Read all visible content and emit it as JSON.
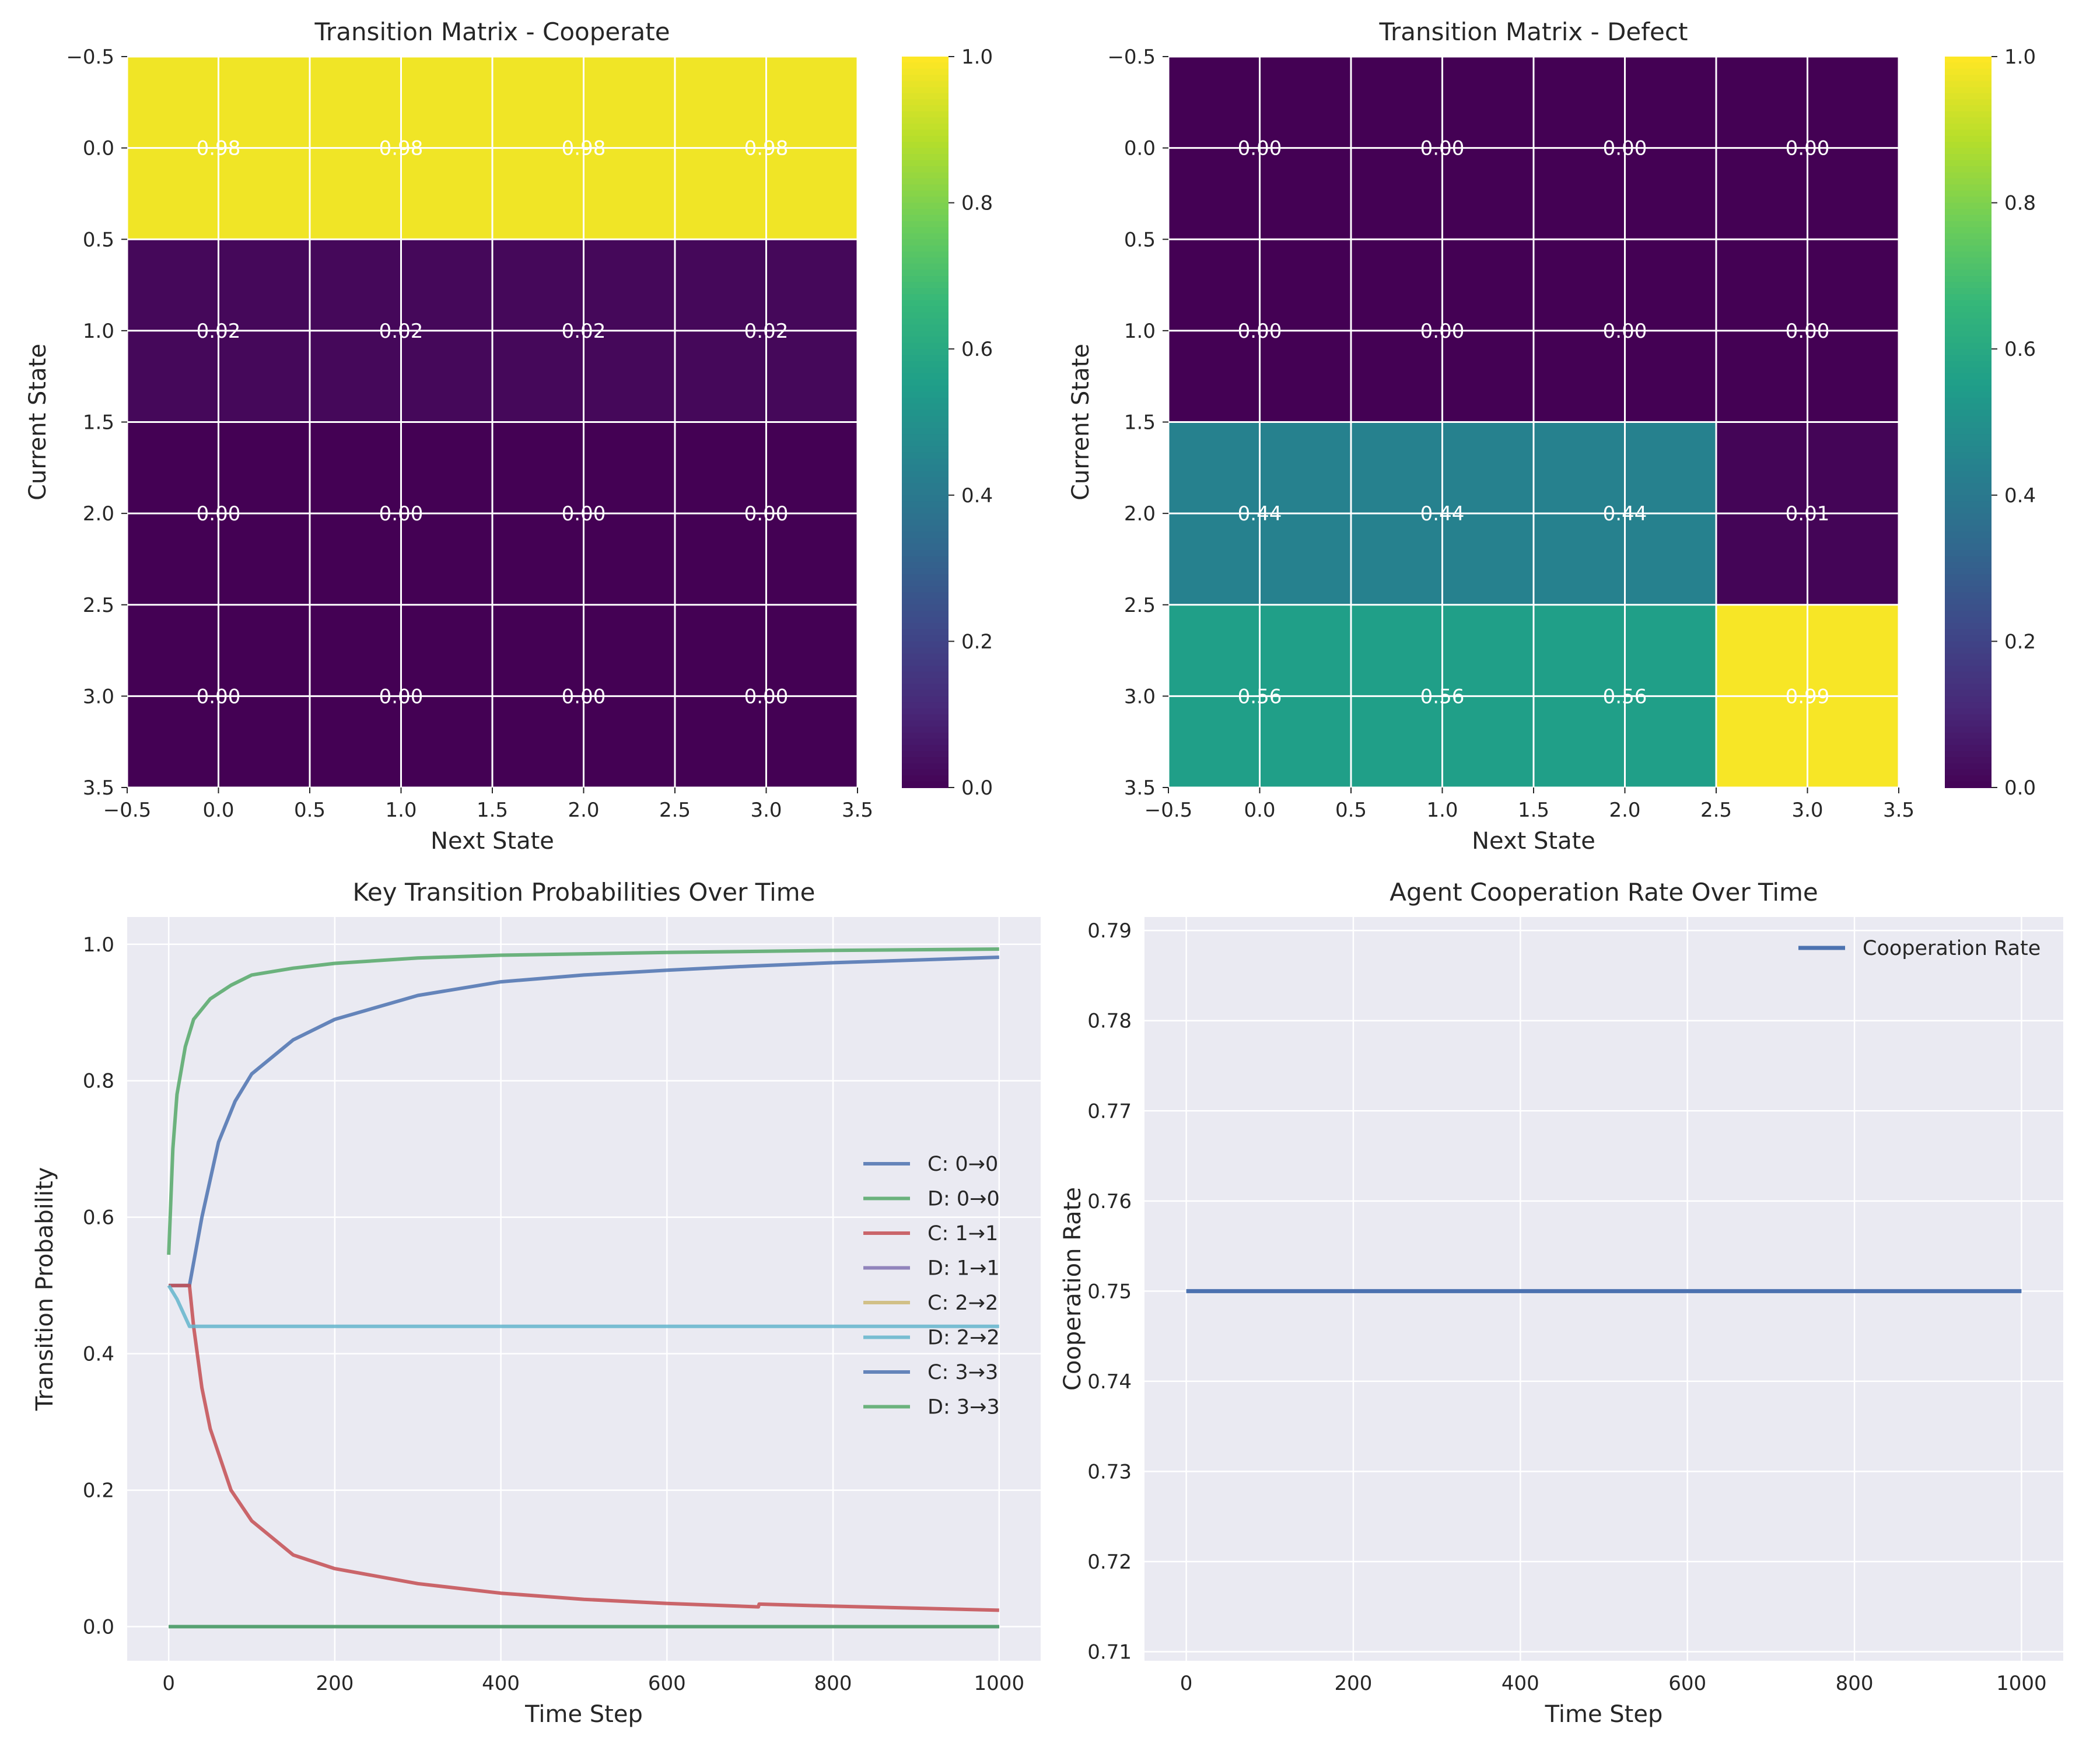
{
  "chart_data": [
    {
      "type": "heatmap",
      "title": "Transition Matrix - Cooperate",
      "xlabel": "Next State",
      "ylabel": "Current State",
      "xlim": [
        -0.5,
        3.5
      ],
      "ylim": [
        3.5,
        -0.5
      ],
      "xticks": [
        "−0.5",
        "0.0",
        "0.5",
        "1.0",
        "1.5",
        "2.0",
        "2.5",
        "3.0",
        "3.5"
      ],
      "yticks": [
        "−0.5",
        "0.0",
        "0.5",
        "1.0",
        "1.5",
        "2.0",
        "2.5",
        "3.0",
        "3.5"
      ],
      "values": [
        [
          0.98,
          0.98,
          0.98,
          0.98
        ],
        [
          0.02,
          0.02,
          0.02,
          0.02
        ],
        [
          0.0,
          0.0,
          0.0,
          0.0
        ],
        [
          0.0,
          0.0,
          0.0,
          0.0
        ]
      ],
      "labels": [
        [
          "0.98",
          "0.98",
          "0.98",
          "0.98"
        ],
        [
          "0.02",
          "0.02",
          "0.02",
          "0.02"
        ],
        [
          "0.00",
          "0.00",
          "0.00",
          "0.00"
        ],
        [
          "0.00",
          "0.00",
          "0.00",
          "0.00"
        ]
      ],
      "colormap": "viridis",
      "colorbar_range": [
        0.0,
        1.0
      ],
      "colorbar_ticks": [
        "0.0",
        "0.2",
        "0.4",
        "0.6",
        "0.8",
        "1.0"
      ],
      "grid": true
    },
    {
      "type": "heatmap",
      "title": "Transition Matrix - Defect",
      "xlabel": "Next State",
      "ylabel": "Current State",
      "xlim": [
        -0.5,
        3.5
      ],
      "ylim": [
        3.5,
        -0.5
      ],
      "xticks": [
        "−0.5",
        "0.0",
        "0.5",
        "1.0",
        "1.5",
        "2.0",
        "2.5",
        "3.0",
        "3.5"
      ],
      "yticks": [
        "−0.5",
        "0.0",
        "0.5",
        "1.0",
        "1.5",
        "2.0",
        "2.5",
        "3.0",
        "3.5"
      ],
      "values": [
        [
          0.0,
          0.0,
          0.0,
          0.0
        ],
        [
          0.0,
          0.0,
          0.0,
          0.0
        ],
        [
          0.44,
          0.44,
          0.44,
          0.01
        ],
        [
          0.56,
          0.56,
          0.56,
          0.99
        ]
      ],
      "labels": [
        [
          "0.00",
          "0.00",
          "0.00",
          "0.00"
        ],
        [
          "0.00",
          "0.00",
          "0.00",
          "0.00"
        ],
        [
          "0.44",
          "0.44",
          "0.44",
          "0.01"
        ],
        [
          "0.56",
          "0.56",
          "0.56",
          "0.99"
        ]
      ],
      "colormap": "viridis",
      "colorbar_range": [
        0.0,
        1.0
      ],
      "colorbar_ticks": [
        "0.0",
        "0.2",
        "0.4",
        "0.6",
        "0.8",
        "1.0"
      ],
      "grid": true
    },
    {
      "type": "line",
      "title": "Key Transition Probabilities Over Time",
      "xlabel": "Time Step",
      "ylabel": "Transition Probability",
      "xlim": [
        -50,
        1050
      ],
      "ylim": [
        -0.05,
        1.04
      ],
      "xticks": [
        0,
        200,
        400,
        600,
        800,
        1000
      ],
      "yticks": [
        0.0,
        0.2,
        0.4,
        0.6,
        0.8,
        1.0
      ],
      "grid": true,
      "legend_position": "center-right",
      "series": [
        {
          "name": "C: 0→0",
          "color": "#4c72b0",
          "x": [
            0,
            25,
            40,
            60,
            80,
            100,
            150,
            200,
            300,
            400,
            500,
            600,
            700,
            800,
            900,
            1000
          ],
          "y": [
            0.5,
            0.5,
            0.6,
            0.71,
            0.77,
            0.81,
            0.86,
            0.89,
            0.925,
            0.945,
            0.955,
            0.962,
            0.968,
            0.973,
            0.977,
            0.981
          ]
        },
        {
          "name": "D: 0→0",
          "color": "#55a868",
          "x": [
            0,
            5,
            10,
            20,
            30,
            50,
            75,
            100,
            150,
            200,
            300,
            400,
            600,
            800,
            1000
          ],
          "y": [
            0.545,
            0.7,
            0.78,
            0.85,
            0.89,
            0.92,
            0.94,
            0.955,
            0.965,
            0.972,
            0.98,
            0.984,
            0.988,
            0.991,
            0.993
          ]
        },
        {
          "name": "C: 1→1",
          "color": "#c44e52",
          "x": [
            0,
            25,
            30,
            40,
            50,
            75,
            100,
            150,
            200,
            300,
            400,
            500,
            600,
            710,
            711,
            800,
            900,
            1000
          ],
          "y": [
            0.5,
            0.5,
            0.44,
            0.35,
            0.29,
            0.2,
            0.155,
            0.105,
            0.085,
            0.063,
            0.049,
            0.04,
            0.034,
            0.029,
            0.033,
            0.03,
            0.027,
            0.024
          ]
        },
        {
          "name": "D: 1→1",
          "color": "#8172b3",
          "x": [
            0,
            1000
          ],
          "y": [
            0.0,
            0.0
          ]
        },
        {
          "name": "C: 2→2",
          "color": "#ccb974",
          "x": [
            0,
            1000
          ],
          "y": [
            0.0,
            0.0
          ]
        },
        {
          "name": "D: 2→2",
          "color": "#64b5cd",
          "x": [
            0,
            10,
            25,
            1000
          ],
          "y": [
            0.5,
            0.48,
            0.44,
            0.44
          ]
        },
        {
          "name": "C: 3→3",
          "color": "#4c72b0",
          "x": [
            0,
            1000
          ],
          "y": [
            0.0,
            0.0
          ]
        },
        {
          "name": "D: 3→3",
          "color": "#55a868",
          "x": [
            0,
            1000
          ],
          "y": [
            0.0,
            0.0
          ]
        }
      ]
    },
    {
      "type": "line",
      "title": "Agent Cooperation Rate Over Time",
      "xlabel": "Time Step",
      "ylabel": "Cooperation Rate",
      "xlim": [
        -50,
        1050
      ],
      "ylim": [
        0.709,
        0.7915
      ],
      "xticks": [
        0,
        200,
        400,
        600,
        800,
        1000
      ],
      "yticks": [
        0.71,
        0.72,
        0.73,
        0.74,
        0.75,
        0.76,
        0.77,
        0.78,
        0.79
      ],
      "grid": true,
      "legend_position": "upper-right",
      "series": [
        {
          "name": "Cooperation Rate",
          "color": "#4c72b0",
          "x": [
            0,
            1000
          ],
          "y": [
            0.75,
            0.75
          ]
        }
      ]
    }
  ]
}
